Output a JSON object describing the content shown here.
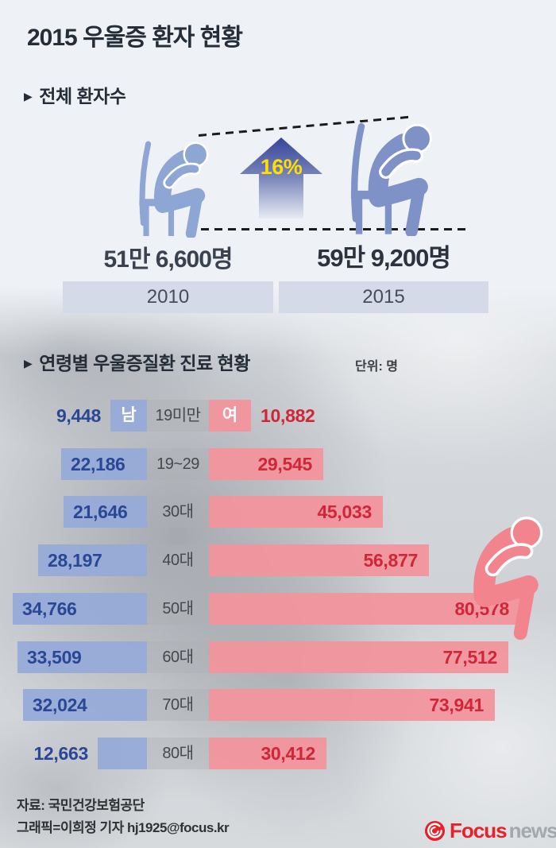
{
  "title": "2015 우울증 환자 현황",
  "bullet": "▶",
  "section_total": {
    "header": "전체 환자수",
    "increase_label": "16%",
    "items": [
      {
        "year": "2010",
        "count_label": "51만 6,600명"
      },
      {
        "year": "2015",
        "count_label": "59만 9,200명"
      }
    ]
  },
  "section_age": {
    "header": "연령별 우울증질환 진료 현황",
    "unit_label": "단위: 명",
    "male_label": "남",
    "female_label": "여"
  },
  "chart_data": [
    {
      "type": "bar",
      "subtype": "pictogram-comparison",
      "title": "전체 환자수",
      "categories": [
        "2010",
        "2015"
      ],
      "values": [
        516600,
        599200
      ],
      "value_labels": [
        "51만 6,600명",
        "59만 9,200명"
      ],
      "change_label": "16%",
      "unit": "명"
    },
    {
      "type": "bar",
      "orientation": "horizontal-diverging",
      "title": "연령별 우울증질환 진료 현황",
      "unit": "명",
      "categories": [
        "19미만",
        "19~29",
        "30대",
        "40대",
        "50대",
        "60대",
        "70대",
        "80대"
      ],
      "series": [
        {
          "name": "남",
          "color": "#96aad8",
          "values": [
            9448,
            22186,
            21646,
            28197,
            34766,
            33509,
            32024,
            12663
          ]
        },
        {
          "name": "여",
          "color": "#f2939c",
          "values": [
            10882,
            29545,
            45033,
            56877,
            80578,
            77512,
            73941,
            30412
          ]
        }
      ],
      "legend_position": "in-first-row"
    }
  ],
  "footer": {
    "source": "자료: 국민건강보험공단",
    "credit": "그래픽=이희정 기자 hj1925@focus.kr",
    "logo_brand": "Focus",
    "logo_suffix": "news"
  },
  "colors": {
    "male_bar": "#96aad8",
    "female_bar": "#f2939c",
    "male_value_text": "#2a4795",
    "female_value_text": "#d02638",
    "figure_2010": "#8da6d3",
    "figure_2015": "#7e92c8",
    "figure_female": "#f2848e",
    "accent_yellow": "#ffdf00",
    "logo_red": "#e62129"
  }
}
